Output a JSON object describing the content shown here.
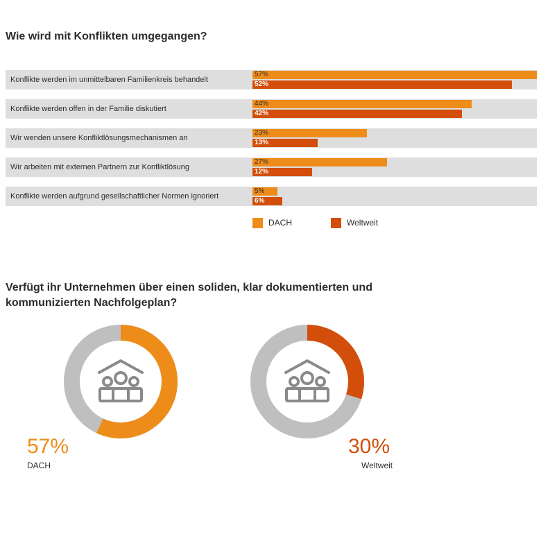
{
  "chart1": {
    "title": "Wie wird mit Konflikten umgegangen?",
    "legend": [
      {
        "name": "DACH",
        "color": "#ee8c1a"
      },
      {
        "name": "Weltweit",
        "color": "#d24e0a"
      }
    ]
  },
  "chart2": {
    "title": "Verfügt ihr Unternehmen über einen soliden, klar dokumentierten und kommunizierten Nachfolgeplan?",
    "icon": "family-house-icon",
    "track_color": "#bfbfbf",
    "donuts": [
      {
        "label": "DACH",
        "value_text": "57%",
        "value": 57,
        "color": "#ee8c1a"
      },
      {
        "label": "Weltweit",
        "value_text": "30%",
        "value": 30,
        "color": "#d24e0a"
      }
    ]
  },
  "chart_data": [
    {
      "type": "bar",
      "title": "Wie wird mit Konflikten umgegangen?",
      "categories": [
        "Konflikte werden im unmittelbaren Familienkreis behandelt",
        "Konflikte werden offen in der Familie diskutiert",
        "Wir wenden unsere Konfliktlösungsmechanismen an",
        "Wir arbeiten mit externen Partnern zur Konfliktlösung",
        "Konflikte werden aufgrund gesellschaftlicher Normen ignoriert"
      ],
      "series": [
        {
          "name": "DACH",
          "values": [
            57,
            44,
            23,
            27,
            5
          ],
          "labels": [
            "57%",
            "44%",
            "23%",
            "27%",
            "5%"
          ]
        },
        {
          "name": "Weltweit",
          "values": [
            52,
            42,
            13,
            12,
            6
          ],
          "labels": [
            "52%",
            "42%",
            "13%",
            "12%",
            "6%"
          ]
        }
      ],
      "xlim": [
        0,
        57
      ],
      "legend": "bottom"
    },
    {
      "type": "pie",
      "title": "Verfügt ihr Unternehmen über einen soliden, klar dokumentierten und kommunizierten Nachfolgeplan?",
      "series": [
        {
          "name": "DACH",
          "values": [
            57,
            43
          ]
        },
        {
          "name": "Weltweit",
          "values": [
            30,
            70
          ]
        }
      ]
    }
  ]
}
